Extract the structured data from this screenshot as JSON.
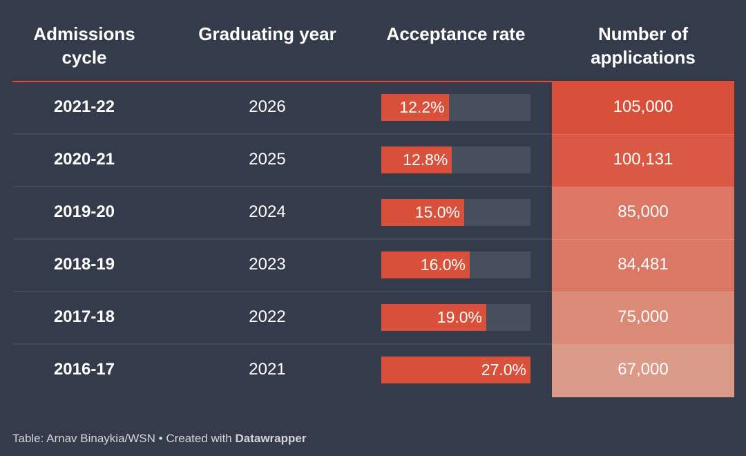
{
  "headers": {
    "cycle": "Admissions cycle",
    "year": "Graduating year",
    "rate": "Acceptance rate",
    "apps": "Number of applications"
  },
  "rows": [
    {
      "cycle": "2021-22",
      "year": "2026",
      "rate": 12.2,
      "rate_label": "12.2%",
      "apps": 105000,
      "apps_label": "105,000"
    },
    {
      "cycle": "2020-21",
      "year": "2025",
      "rate": 12.8,
      "rate_label": "12.8%",
      "apps": 100131,
      "apps_label": "100,131"
    },
    {
      "cycle": "2019-20",
      "year": "2024",
      "rate": 15.0,
      "rate_label": "15.0%",
      "apps": 85000,
      "apps_label": "85,000"
    },
    {
      "cycle": "2018-19",
      "year": "2023",
      "rate": 16.0,
      "rate_label": "16.0%",
      "apps": 84481,
      "apps_label": "84,481"
    },
    {
      "cycle": "2017-18",
      "year": "2022",
      "rate": 19.0,
      "rate_label": "19.0%",
      "apps": 75000,
      "apps_label": "75,000"
    },
    {
      "cycle": "2016-17",
      "year": "2021",
      "rate": 27.0,
      "rate_label": "27.0%",
      "apps": 67000,
      "apps_label": "67,000"
    }
  ],
  "colors": {
    "accent": "#d9513a",
    "background": "#343c4c",
    "bar_track": "#474e5c",
    "heat_high": "#d9503a",
    "heat_low": "#dc9a89"
  },
  "footer": {
    "source": "Table: Arnav Binaykia/WSN • Created with ",
    "brand": "Datawrapper"
  },
  "chart_data": {
    "type": "table",
    "title": "",
    "columns": [
      "Admissions cycle",
      "Graduating year",
      "Acceptance rate",
      "Number of applications"
    ],
    "categories": [
      "2021-22",
      "2020-21",
      "2019-20",
      "2018-19",
      "2017-18",
      "2016-17"
    ],
    "series": [
      {
        "name": "Graduating year",
        "values": [
          2026,
          2025,
          2024,
          2023,
          2022,
          2021
        ]
      },
      {
        "name": "Acceptance rate (%)",
        "values": [
          12.2,
          12.8,
          15.0,
          16.0,
          19.0,
          27.0
        ],
        "display": "bar",
        "range": [
          0,
          27.0
        ]
      },
      {
        "name": "Number of applications",
        "values": [
          105000,
          100131,
          85000,
          84481,
          75000,
          67000
        ],
        "display": "heatmap"
      }
    ]
  }
}
